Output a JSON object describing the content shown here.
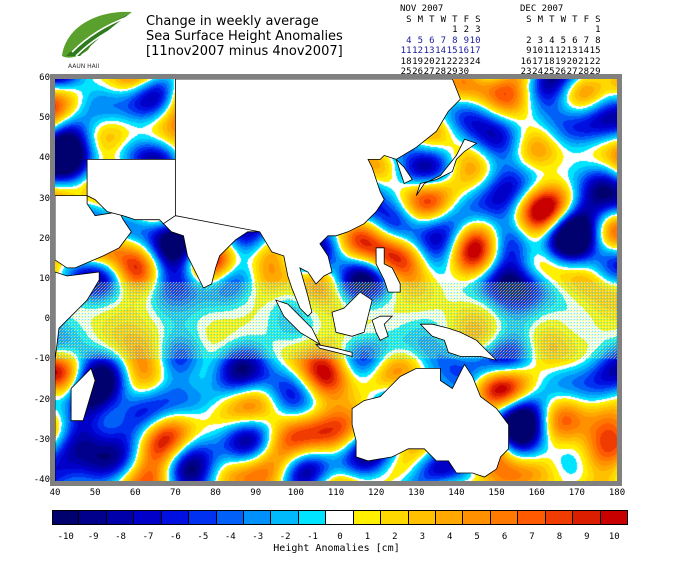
{
  "title": {
    "line1": "Change in weekly average",
    "line2": "Sea Surface Height Anomalies",
    "line3": "[11nov2007 minus 4nov2007]"
  },
  "logo": {
    "text": "AAUN HAII"
  },
  "calendars": [
    {
      "month": "NOV 2007",
      "days_header": "S M T W T F S",
      "first_weekday": 4,
      "num_days": 30,
      "highlight": [
        4,
        5,
        6,
        7,
        8,
        9,
        10,
        11,
        12,
        13,
        14,
        15,
        16,
        17
      ]
    },
    {
      "month": "DEC 2007",
      "days_header": "S M T W T F S",
      "first_weekday": 6,
      "num_days": 31,
      "highlight": []
    }
  ],
  "map": {
    "lon_ticks": [
      "40",
      "50",
      "60",
      "70",
      "80",
      "90",
      "100",
      "110",
      "120",
      "130",
      "140",
      "150",
      "160",
      "170",
      "180"
    ],
    "lat_ticks": [
      "60",
      "50",
      "40",
      "30",
      "20",
      "10",
      "0",
      "-10",
      "-20",
      "-30",
      "-40"
    ],
    "lon_range": [
      40,
      180
    ],
    "lat_range": [
      -40,
      60
    ]
  },
  "legend": {
    "labels": [
      "-10",
      "-9",
      "-8",
      "-7",
      "-6",
      "-5",
      "-4",
      "-3",
      "-2",
      "-1",
      "0",
      "1",
      "2",
      "3",
      "4",
      "5",
      "6",
      "7",
      "8",
      "9",
      "10"
    ],
    "title": "Height Anomalies [cm]",
    "colors": [
      "#00006e",
      "#00008c",
      "#0000aa",
      "#0000c8",
      "#0010e0",
      "#0030f0",
      "#0060f8",
      "#0090fa",
      "#00b8fc",
      "#00e4ff",
      "#ffffff",
      "#fff000",
      "#ffd800",
      "#ffc000",
      "#ffa800",
      "#ff9000",
      "#ff7800",
      "#ff5a00",
      "#f03c00",
      "#dc1e00",
      "#c80000"
    ]
  }
}
